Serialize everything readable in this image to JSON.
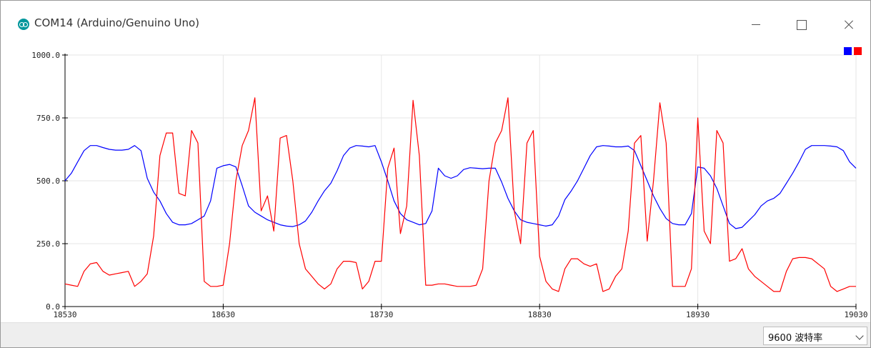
{
  "window": {
    "title": "COM14 (Arduino/Genuino Uno)",
    "icon": "arduino-logo-icon",
    "controls": [
      "minimize-icon",
      "maximize-icon",
      "close-icon"
    ]
  },
  "statusbar": {
    "baud_label": "9600 波特率",
    "chevron_icon": "chevron-down-icon"
  },
  "chart_data": {
    "type": "line",
    "title": "",
    "xlabel": "",
    "ylabel": "",
    "xlim": [
      18530,
      19030
    ],
    "ylim": [
      0,
      1000
    ],
    "x_ticks": [
      18530,
      18630,
      18730,
      18830,
      18930,
      19030
    ],
    "y_ticks": [
      0,
      250,
      500,
      750,
      1000
    ],
    "y_tick_labels": [
      "0.0",
      "250.0",
      "500.0",
      "750.0",
      "1000.0"
    ],
    "grid": true,
    "legend_placement": "top-right",
    "series": [
      {
        "color": "#0000ff",
        "x": [
          18530,
          18534,
          18538,
          18542,
          18546,
          18550,
          18554,
          18558,
          18562,
          18566,
          18570,
          18574,
          18578,
          18582,
          18586,
          18590,
          18594,
          18598,
          18602,
          18606,
          18610,
          18614,
          18618,
          18622,
          18626,
          18630,
          18634,
          18638,
          18642,
          18646,
          18650,
          18654,
          18658,
          18662,
          18666,
          18670,
          18674,
          18678,
          18682,
          18686,
          18690,
          18694,
          18698,
          18702,
          18706,
          18710,
          18714,
          18718,
          18722,
          18726,
          18730,
          18734,
          18738,
          18742,
          18746,
          18750,
          18754,
          18758,
          18762,
          18766,
          18770,
          18774,
          18778,
          18782,
          18786,
          18790,
          18794,
          18798,
          18802,
          18806,
          18810,
          18814,
          18818,
          18822,
          18826,
          18830,
          18834,
          18838,
          18842,
          18846,
          18850,
          18854,
          18858,
          18862,
          18866,
          18870,
          18874,
          18878,
          18882,
          18886,
          18890,
          18894,
          18898,
          18902,
          18906,
          18910,
          18914,
          18918,
          18922,
          18926,
          18930,
          18934,
          18938,
          18942,
          18946,
          18950,
          18954,
          18958,
          18962,
          18966,
          18970,
          18974,
          18978,
          18982,
          18986,
          18990,
          18994,
          18998,
          19002,
          19006,
          19010,
          19014,
          19018,
          19022,
          19026,
          19030
        ],
        "y": [
          500,
          530,
          575,
          620,
          640,
          640,
          632,
          625,
          622,
          622,
          625,
          640,
          620,
          510,
          455,
          420,
          370,
          335,
          325,
          325,
          330,
          345,
          360,
          420,
          550,
          560,
          565,
          555,
          480,
          400,
          375,
          360,
          345,
          335,
          325,
          320,
          318,
          325,
          340,
          375,
          420,
          460,
          490,
          540,
          600,
          630,
          640,
          638,
          635,
          640,
          575,
          500,
          420,
          370,
          345,
          335,
          325,
          330,
          380,
          550,
          520,
          510,
          520,
          545,
          552,
          550,
          548,
          550,
          550,
          495,
          430,
          380,
          345,
          335,
          330,
          325,
          320,
          325,
          360,
          425,
          460,
          500,
          550,
          600,
          635,
          640,
          638,
          635,
          635,
          638,
          620,
          560,
          500,
          440,
          390,
          350,
          330,
          325,
          325,
          370,
          555,
          550,
          520,
          470,
          400,
          330,
          310,
          315,
          340,
          365,
          400,
          420,
          430,
          450,
          490,
          530,
          575,
          625,
          640,
          640,
          640,
          638,
          635,
          620,
          575,
          550
        ]
      },
      {
        "color": "#ff0000",
        "x": [
          18530,
          18534,
          18538,
          18542,
          18546,
          18550,
          18554,
          18558,
          18562,
          18566,
          18570,
          18574,
          18578,
          18582,
          18586,
          18590,
          18594,
          18598,
          18602,
          18606,
          18610,
          18614,
          18618,
          18622,
          18626,
          18630,
          18634,
          18638,
          18642,
          18646,
          18650,
          18654,
          18658,
          18662,
          18666,
          18670,
          18674,
          18678,
          18682,
          18686,
          18690,
          18694,
          18698,
          18702,
          18706,
          18710,
          18714,
          18718,
          18722,
          18726,
          18730,
          18734,
          18738,
          18742,
          18746,
          18750,
          18754,
          18758,
          18762,
          18766,
          18770,
          18774,
          18778,
          18782,
          18786,
          18790,
          18794,
          18798,
          18802,
          18806,
          18810,
          18814,
          18818,
          18822,
          18826,
          18830,
          18834,
          18838,
          18842,
          18846,
          18850,
          18854,
          18858,
          18862,
          18866,
          18870,
          18874,
          18878,
          18882,
          18886,
          18890,
          18894,
          18898,
          18902,
          18906,
          18910,
          18914,
          18918,
          18922,
          18926,
          18930,
          18934,
          18938,
          18942,
          18946,
          18950,
          18954,
          18958,
          18962,
          18966,
          18970,
          18974,
          18978,
          18982,
          18986,
          18990,
          18994,
          18998,
          19002,
          19006,
          19010,
          19014,
          19018,
          19022,
          19026,
          19030
        ],
        "y": [
          90,
          85,
          80,
          140,
          170,
          175,
          140,
          125,
          130,
          135,
          140,
          80,
          100,
          130,
          280,
          600,
          690,
          690,
          450,
          440,
          700,
          650,
          100,
          80,
          80,
          85,
          250,
          500,
          640,
          700,
          830,
          380,
          440,
          300,
          670,
          680,
          500,
          250,
          150,
          120,
          90,
          70,
          90,
          150,
          180,
          180,
          175,
          70,
          100,
          180,
          180,
          550,
          630,
          290,
          400,
          820,
          600,
          85,
          85,
          90,
          90,
          85,
          80,
          80,
          80,
          85,
          150,
          500,
          650,
          700,
          830,
          380,
          250,
          650,
          700,
          200,
          100,
          70,
          60,
          150,
          190,
          190,
          170,
          160,
          170,
          60,
          70,
          120,
          150,
          300,
          650,
          680,
          260,
          500,
          810,
          650,
          80,
          80,
          80,
          150,
          750,
          300,
          250,
          700,
          650,
          180,
          190,
          230,
          150,
          120,
          100,
          80,
          60,
          60,
          140,
          190,
          195,
          195,
          190,
          170,
          150,
          80,
          60,
          70,
          80,
          80
        ]
      }
    ]
  }
}
